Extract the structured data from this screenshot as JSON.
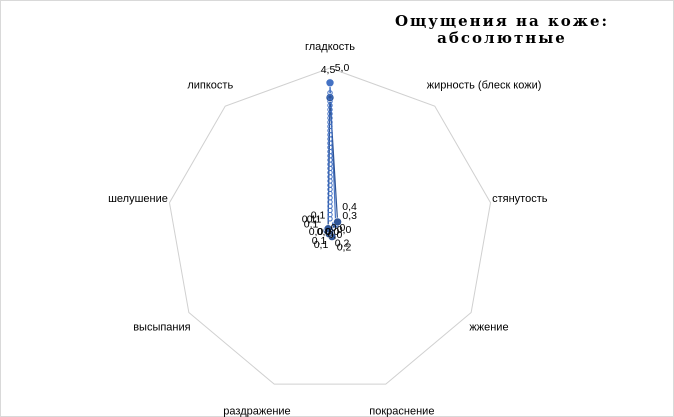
{
  "chart_data": {
    "type": "radar",
    "title_lines": [
      "Ощущения на коже:",
      "абсолютные"
    ],
    "categories": [
      "гладкость",
      "жирность (блеск кожи)",
      "стянутость",
      "жжение",
      "покраснение",
      "раздражение",
      "высыпания",
      "шелушение",
      "липкость"
    ],
    "series": [
      {
        "values": [
          5.0,
          0.3,
          0.0,
          0.0,
          0.2,
          0.1,
          0.0,
          0.1,
          0.1
        ]
      },
      {
        "values": [
          4.5,
          0.4,
          0.0,
          0.0,
          0.2,
          0.1,
          0.0,
          0.1,
          0.1
        ]
      }
    ],
    "rmax": 5.5,
    "grid": "outer-ring-only",
    "colors": {
      "series1": "#4472c4",
      "series2": "#2f5597",
      "grid": "#d0d0d0"
    }
  }
}
